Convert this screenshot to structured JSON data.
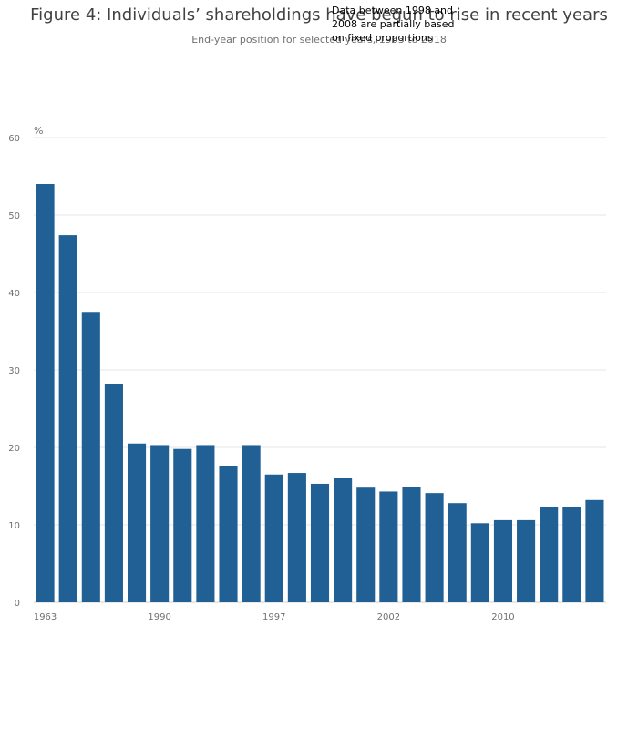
{
  "chart_data": {
    "type": "bar",
    "title": "Figure 4: Individuals’ shareholdings have begun to rise in recent years",
    "subtitle": "End-year position for selected years, 1963 to 2018",
    "annotation": "Data between 1998 and 2008 are partially based on fixed proportions",
    "ylabel": "%",
    "ylim": [
      0,
      60
    ],
    "yticks": [
      0,
      10,
      20,
      30,
      40,
      50,
      60
    ],
    "xtick_labels": [
      "1963",
      "1990",
      "1997",
      "2002",
      "2010"
    ],
    "xtick_indices": [
      0,
      5,
      10,
      15,
      20
    ],
    "grid": true,
    "bar_color": "#206095",
    "values": [
      54.0,
      47.4,
      37.5,
      28.2,
      20.5,
      20.3,
      19.8,
      20.3,
      17.6,
      20.3,
      16.5,
      16.7,
      15.3,
      16.0,
      14.8,
      14.3,
      14.9,
      14.1,
      12.8,
      10.2,
      10.6,
      10.6,
      12.3,
      12.3,
      13.2
    ]
  }
}
